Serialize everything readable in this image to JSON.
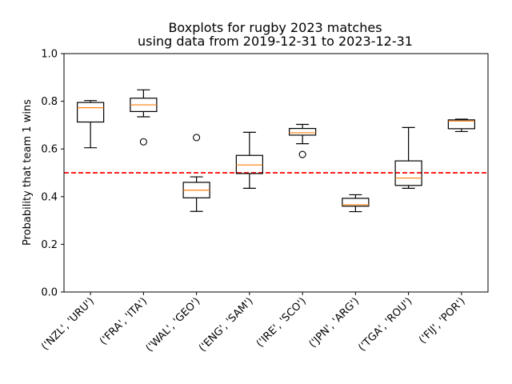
{
  "chart_data": {
    "type": "boxplot",
    "title": "Boxplots for rugby 2023 matches",
    "subtitle": "using data from 2019-12-31 to 2023-12-31",
    "xlabel": "",
    "ylabel": "Probability that team 1 wins",
    "ylim": [
      0.0,
      1.0
    ],
    "yticks": [
      "0.0",
      "0.2",
      "0.4",
      "0.6",
      "0.8",
      "1.0"
    ],
    "grid": false,
    "reference_line": {
      "y": 0.5,
      "color": "#ff0000",
      "style": "dashed"
    },
    "colors": {
      "box": "#000000",
      "median": "#ff7f0e",
      "flier": "#000000"
    },
    "categories": [
      "('NZL', 'URU')",
      "('FRA', 'ITA')",
      "('WAL', 'GEO')",
      "('ENG', 'SAM')",
      "('IRE', 'SCO')",
      "('JPN', 'ARG')",
      "('TGA', 'ROU')",
      "('FIJ', 'POR')"
    ],
    "boxes": [
      {
        "whislo": 0.605,
        "q1": 0.713,
        "med": 0.773,
        "q3": 0.795,
        "whishi": 0.803,
        "fliers": []
      },
      {
        "whislo": 0.735,
        "q1": 0.757,
        "med": 0.785,
        "q3": 0.813,
        "whishi": 0.848,
        "fliers": [
          0.63
        ]
      },
      {
        "whislo": 0.338,
        "q1": 0.395,
        "med": 0.427,
        "q3": 0.46,
        "whishi": 0.483,
        "fliers": [
          0.648
        ]
      },
      {
        "whislo": 0.435,
        "q1": 0.497,
        "med": 0.533,
        "q3": 0.573,
        "whishi": 0.67,
        "fliers": []
      },
      {
        "whislo": 0.622,
        "q1": 0.658,
        "med": 0.668,
        "q3": 0.686,
        "whishi": 0.703,
        "fliers": [
          0.577
        ]
      },
      {
        "whislo": 0.337,
        "q1": 0.36,
        "med": 0.366,
        "q3": 0.393,
        "whishi": 0.408,
        "fliers": []
      },
      {
        "whislo": 0.435,
        "q1": 0.447,
        "med": 0.478,
        "q3": 0.55,
        "whishi": 0.69,
        "fliers": []
      },
      {
        "whislo": 0.673,
        "q1": 0.685,
        "med": 0.717,
        "q3": 0.722,
        "whishi": 0.725,
        "fliers": []
      }
    ]
  }
}
